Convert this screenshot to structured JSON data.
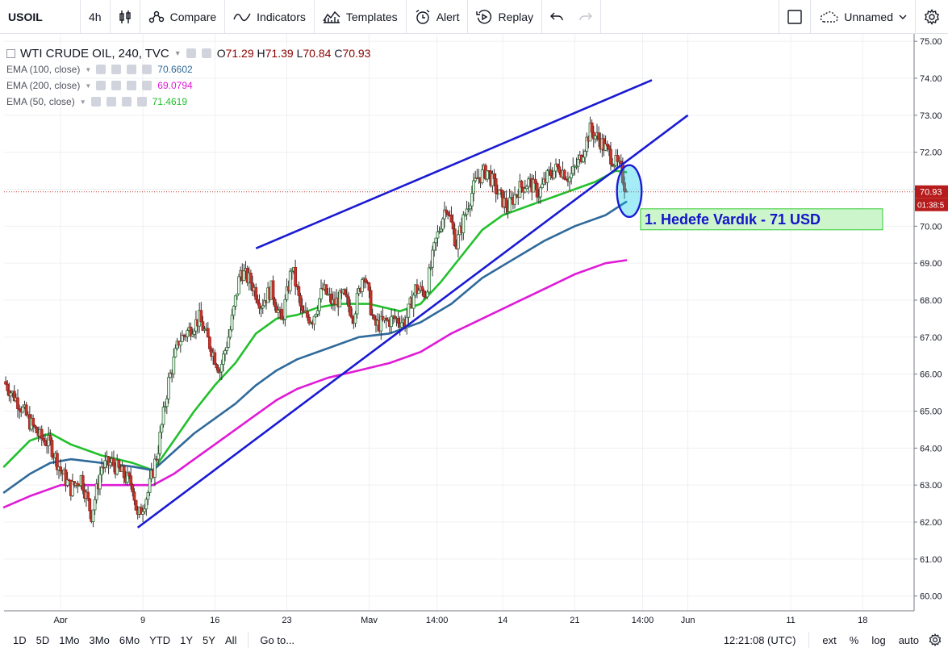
{
  "toolbar": {
    "symbol": "USOIL",
    "interval": "4h",
    "compare": "Compare",
    "indicators": "Indicators",
    "templates": "Templates",
    "alert": "Alert",
    "replay": "Replay",
    "layout_name": "Unnamed"
  },
  "legend": {
    "title": "WTI CRUDE OIL, 240, TVC",
    "ohlc": [
      {
        "label": "O",
        "value": "71.29"
      },
      {
        "label": "H",
        "value": "71.39"
      },
      {
        "label": "L",
        "value": "70.84"
      },
      {
        "label": "C",
        "value": "70.93"
      }
    ],
    "indicators": [
      {
        "name": "EMA (100, close)",
        "value": "70.6602",
        "color": "#2f6a9a"
      },
      {
        "name": "EMA (200, close)",
        "value": "69.0794",
        "color": "#e01ad6"
      },
      {
        "name": "EMA (50, close)",
        "value": "71.4619",
        "color": "#22c02c"
      }
    ]
  },
  "price_tags": {
    "last": "70.93",
    "countdown": "01:38:5"
  },
  "annotation": "1. Hedefe Vardık - 71 USD",
  "bottom": {
    "ranges": [
      "1D",
      "5D",
      "1Mo",
      "3Mo",
      "6Mo",
      "YTD",
      "1Y",
      "5Y",
      "All"
    ],
    "goto": "Go to...",
    "time": "12:21:08 (UTC)",
    "ext": "ext",
    "pct": "%",
    "log": "log",
    "auto": "auto"
  },
  "chart_data": {
    "type": "candlestick",
    "ylim": [
      59.6,
      75.2
    ],
    "yticks": [
      "60.00",
      "61.00",
      "62.00",
      "63.00",
      "64.00",
      "65.00",
      "66.00",
      "67.00",
      "68.00",
      "69.00",
      "70.00",
      "71.00",
      "72.00",
      "73.00",
      "74.00",
      "75.00"
    ],
    "xticks": [
      {
        "label": "Apr",
        "day": 0
      },
      {
        "label": "9",
        "day": 8
      },
      {
        "label": "16",
        "day": 15
      },
      {
        "label": "23",
        "day": 22
      },
      {
        "label": "May",
        "day": 30
      },
      {
        "label": "14:00",
        "day": 36.6
      },
      {
        "label": "14",
        "day": 43
      },
      {
        "label": "21",
        "day": 50
      },
      {
        "label": "14:00",
        "day": 56.6
      },
      {
        "label": "Jun",
        "day": 61
      },
      {
        "label": "11",
        "day": 71
      },
      {
        "label": "18",
        "day": 78
      }
    ],
    "day_range": [
      -5.5,
      83
    ],
    "price_path": [
      [
        -5.5,
        65.8
      ],
      [
        -4,
        65.2
      ],
      [
        -3,
        64.7
      ],
      [
        -2,
        64.3
      ],
      [
        -1,
        64.1
      ],
      [
        0,
        63.4
      ],
      [
        1,
        62.9
      ],
      [
        2,
        63.2
      ],
      [
        3,
        62.2
      ],
      [
        4,
        63.5
      ],
      [
        5,
        63.6
      ],
      [
        6,
        63.3
      ],
      [
        7,
        63.0
      ],
      [
        7.5,
        62.1
      ],
      [
        8.5,
        62.8
      ],
      [
        9.5,
        64.0
      ],
      [
        10.5,
        65.8
      ],
      [
        11.5,
        66.9
      ],
      [
        12.5,
        67.2
      ],
      [
        13.5,
        67.5
      ],
      [
        14.5,
        66.8
      ],
      [
        15.5,
        66.1
      ],
      [
        16.5,
        67.2
      ],
      [
        17.5,
        68.8
      ],
      [
        18.5,
        68.5
      ],
      [
        19.5,
        67.9
      ],
      [
        20.5,
        68.3
      ],
      [
        21.5,
        67.4
      ],
      [
        22.5,
        68.9
      ],
      [
        23.5,
        67.6
      ],
      [
        24.5,
        67.5
      ],
      [
        25.5,
        68.3
      ],
      [
        26.5,
        67.9
      ],
      [
        27.5,
        68.1
      ],
      [
        28.5,
        67.6
      ],
      [
        29.5,
        68.8
      ],
      [
        30.5,
        67.3
      ],
      [
        31.5,
        67.4
      ],
      [
        32.5,
        67.5
      ],
      [
        33.5,
        67.4
      ],
      [
        34.5,
        68.3
      ],
      [
        35.5,
        68.2
      ],
      [
        36.5,
        69.6
      ],
      [
        37.5,
        70.6
      ],
      [
        38.5,
        69.5
      ],
      [
        39.5,
        70.5
      ],
      [
        40.5,
        71.3
      ],
      [
        41.5,
        71.5
      ],
      [
        42.5,
        70.9
      ],
      [
        43.5,
        70.5
      ],
      [
        44.5,
        71.0
      ],
      [
        45.5,
        71.2
      ],
      [
        46.5,
        70.9
      ],
      [
        47.5,
        71.4
      ],
      [
        48.5,
        71.6
      ],
      [
        49.5,
        71.3
      ],
      [
        50.5,
        71.8
      ],
      [
        51.5,
        72.6
      ],
      [
        52.5,
        72.3
      ],
      [
        53.5,
        71.9
      ],
      [
        54.5,
        71.5
      ],
      [
        55.0,
        70.93
      ]
    ],
    "series": [
      {
        "name": "EMA (50, close)",
        "color": "#22c02c",
        "points": [
          [
            -5.5,
            63.5
          ],
          [
            -3,
            64.2
          ],
          [
            -1,
            64.4
          ],
          [
            1,
            64.1
          ],
          [
            4,
            63.8
          ],
          [
            7,
            63.6
          ],
          [
            9,
            63.4
          ],
          [
            11,
            64.2
          ],
          [
            13,
            65.0
          ],
          [
            15,
            65.7
          ],
          [
            17,
            66.3
          ],
          [
            19,
            67.1
          ],
          [
            21,
            67.5
          ],
          [
            23,
            67.6
          ],
          [
            25,
            67.8
          ],
          [
            27,
            67.9
          ],
          [
            30,
            67.9
          ],
          [
            33,
            67.7
          ],
          [
            35,
            67.9
          ],
          [
            37,
            68.5
          ],
          [
            39,
            69.2
          ],
          [
            41,
            69.9
          ],
          [
            43,
            70.3
          ],
          [
            46,
            70.6
          ],
          [
            49,
            70.9
          ],
          [
            52,
            71.2
          ],
          [
            54,
            71.5
          ],
          [
            55,
            71.46
          ]
        ]
      },
      {
        "name": "EMA (100, close)",
        "color": "#2f6a9a",
        "points": [
          [
            -5.5,
            62.8
          ],
          [
            -3,
            63.3
          ],
          [
            -1,
            63.6
          ],
          [
            1,
            63.7
          ],
          [
            4,
            63.6
          ],
          [
            7,
            63.5
          ],
          [
            9,
            63.4
          ],
          [
            11,
            63.9
          ],
          [
            13,
            64.4
          ],
          [
            15,
            64.8
          ],
          [
            17,
            65.2
          ],
          [
            19,
            65.7
          ],
          [
            21,
            66.1
          ],
          [
            23,
            66.4
          ],
          [
            26,
            66.7
          ],
          [
            29,
            67.0
          ],
          [
            32,
            67.1
          ],
          [
            35,
            67.4
          ],
          [
            38,
            67.9
          ],
          [
            41,
            68.6
          ],
          [
            44,
            69.1
          ],
          [
            47,
            69.6
          ],
          [
            50,
            70.0
          ],
          [
            53,
            70.3
          ],
          [
            55,
            70.66
          ]
        ]
      },
      {
        "name": "EMA (200, close)",
        "color": "#e01ad6",
        "points": [
          [
            -5.5,
            62.4
          ],
          [
            -3,
            62.7
          ],
          [
            0,
            63.0
          ],
          [
            4,
            63.0
          ],
          [
            7,
            63.0
          ],
          [
            9,
            63.0
          ],
          [
            11,
            63.3
          ],
          [
            13,
            63.7
          ],
          [
            15,
            64.1
          ],
          [
            17,
            64.5
          ],
          [
            19,
            64.9
          ],
          [
            21,
            65.3
          ],
          [
            23,
            65.6
          ],
          [
            26,
            65.9
          ],
          [
            29,
            66.1
          ],
          [
            32,
            66.3
          ],
          [
            35,
            66.6
          ],
          [
            38,
            67.1
          ],
          [
            41,
            67.5
          ],
          [
            44,
            67.9
          ],
          [
            47,
            68.3
          ],
          [
            50,
            68.7
          ],
          [
            53,
            69.0
          ],
          [
            55,
            69.08
          ]
        ]
      }
    ],
    "trendlines": [
      {
        "name": "lower-support",
        "color": "#1a1ad4",
        "from": [
          7.5,
          61.85
        ],
        "to": [
          61,
          73.0
        ]
      },
      {
        "name": "upper-resistance",
        "color": "#1a1ad4",
        "from": [
          19,
          69.4
        ],
        "to": [
          57.5,
          73.95
        ]
      }
    ],
    "last_price": 70.93,
    "highlight": {
      "day": 55.3,
      "price": 70.95,
      "rx_days": 1.2,
      "ry_price": 0.7
    }
  }
}
